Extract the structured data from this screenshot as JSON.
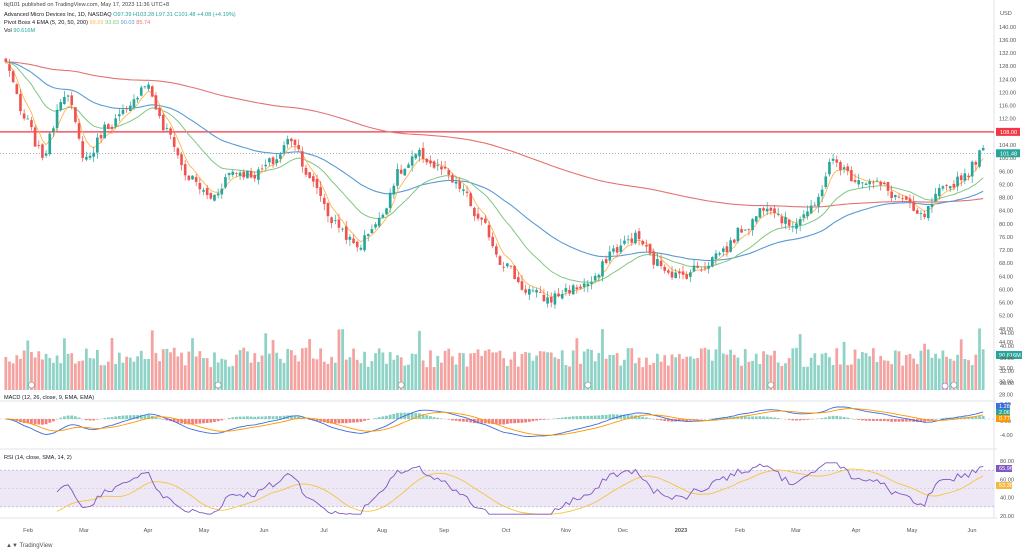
{
  "header": {
    "publisher": "tkjl101 published on TradingView.com, May 17, 2023 11:36 UTC+8",
    "symbol_line": "Advanced Micro Devices Inc, 1D, NASDAQ",
    "ohlc": "O97.39 H103.28 L97.31 C101.48 +4.08 (+4.19%)",
    "ribbon_name": "Pivot Boss 4 EMA (5, 20, 50, 200)",
    "ribbon_values": [
      "99.69",
      "93.83",
      "90.03",
      "85.74"
    ],
    "vol_label": "Vol",
    "vol_value": "90.616M"
  },
  "colors": {
    "up": "#26a69a",
    "down": "#ef5350",
    "up_vol": "#8fd3c7",
    "down_vol": "#f5a3a1",
    "ema5": "#ffb74d",
    "ema20": "#81c784",
    "ema50": "#5b9bd5",
    "ema200": "#e57373",
    "hline": "#f23645",
    "macd_line": "#3f6ce0",
    "signal_line": "#ff9800",
    "rsi_line": "#7e57c2",
    "rsi_ma": "#f5c542"
  },
  "chart_data": {
    "type": "candlestick",
    "price_axis": {
      "ticks": [
        "140.00",
        "136.00",
        "132.00",
        "128.00",
        "124.00",
        "120.00",
        "116.00",
        "112.00",
        "108.00",
        "104.00",
        "100.00",
        "96.00",
        "92.00",
        "88.00",
        "84.00",
        "80.00",
        "76.00",
        "72.00",
        "68.00",
        "64.00",
        "60.00",
        "56.00",
        "52.00",
        "48.00",
        "44.00",
        "40.00",
        "36.00",
        "32.00",
        "28.00"
      ],
      "currency": "USD",
      "range": [
        26,
        143
      ]
    },
    "horizontal_line": {
      "value": 108.0,
      "label": "108.00"
    },
    "last_price_label": "101.48",
    "volume_label": "90.616M",
    "x_axis_labels": [
      "Feb",
      "Mar",
      "Apr",
      "May",
      "Jun",
      "Jul",
      "Aug",
      "Sep",
      "Oct",
      "Nov",
      "Dec",
      "2023",
      "Feb",
      "Mar",
      "Apr",
      "May",
      "Jun"
    ],
    "close_anchors": [
      [
        0,
        129
      ],
      [
        5,
        112
      ],
      [
        10,
        101
      ],
      [
        16,
        120
      ],
      [
        22,
        100
      ],
      [
        28,
        110
      ],
      [
        33,
        114
      ],
      [
        38,
        123
      ],
      [
        44,
        108
      ],
      [
        50,
        94
      ],
      [
        56,
        88
      ],
      [
        62,
        96
      ],
      [
        68,
        95
      ],
      [
        73,
        99
      ],
      [
        78,
        106
      ],
      [
        84,
        92
      ],
      [
        90,
        80
      ],
      [
        96,
        73
      ],
      [
        101,
        80
      ],
      [
        108,
        96
      ],
      [
        113,
        101
      ],
      [
        118,
        97
      ],
      [
        124,
        91
      ],
      [
        130,
        80
      ],
      [
        136,
        68
      ],
      [
        142,
        60
      ],
      [
        148,
        57
      ],
      [
        154,
        60
      ],
      [
        160,
        62
      ],
      [
        166,
        72
      ],
      [
        172,
        76
      ],
      [
        178,
        68
      ],
      [
        184,
        64
      ],
      [
        190,
        67
      ],
      [
        196,
        72
      ],
      [
        202,
        79
      ],
      [
        208,
        86
      ],
      [
        214,
        80
      ],
      [
        220,
        84
      ],
      [
        226,
        99
      ],
      [
        232,
        94
      ],
      [
        238,
        92
      ],
      [
        244,
        88
      ],
      [
        250,
        82
      ],
      [
        256,
        90
      ],
      [
        262,
        95
      ],
      [
        267,
        102
      ]
    ],
    "macd": {
      "title": "MACD (12, 26, close, 9, EMA, EMA)",
      "values": [
        "1.28",
        "2.06",
        "0.7797"
      ],
      "axis_ticks": [
        "6.00",
        "0.00",
        "-4.00"
      ]
    },
    "rsi": {
      "title": "RSI (14, close, SMA, 14, 2)",
      "values": [
        "65.96",
        "53.36"
      ],
      "axis_ticks": [
        "80.00",
        "60.00",
        "40.00",
        "20.00"
      ],
      "bands": [
        70,
        30
      ]
    }
  },
  "footer": {
    "brand": "TradingView"
  }
}
